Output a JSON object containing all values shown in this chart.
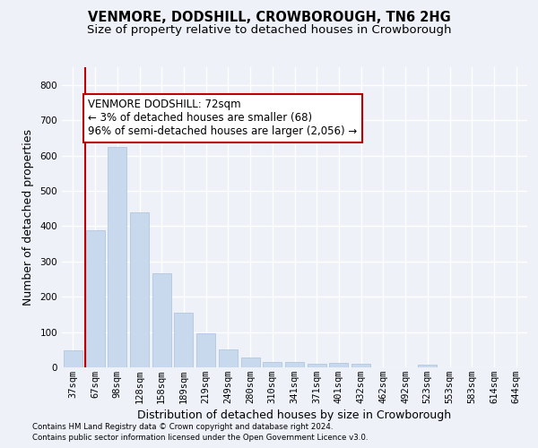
{
  "title": "VENMORE, DODSHILL, CROWBOROUGH, TN6 2HG",
  "subtitle": "Size of property relative to detached houses in Crowborough",
  "xlabel": "Distribution of detached houses by size in Crowborough",
  "ylabel": "Number of detached properties",
  "footnote1": "Contains HM Land Registry data © Crown copyright and database right 2024.",
  "footnote2": "Contains public sector information licensed under the Open Government Licence v3.0.",
  "categories": [
    "37sqm",
    "67sqm",
    "98sqm",
    "128sqm",
    "158sqm",
    "189sqm",
    "219sqm",
    "249sqm",
    "280sqm",
    "310sqm",
    "341sqm",
    "371sqm",
    "401sqm",
    "432sqm",
    "462sqm",
    "492sqm",
    "523sqm",
    "553sqm",
    "583sqm",
    "614sqm",
    "644sqm"
  ],
  "values": [
    47,
    387,
    625,
    438,
    267,
    155,
    97,
    51,
    28,
    15,
    15,
    10,
    12,
    10,
    0,
    0,
    8,
    0,
    0,
    0,
    0
  ],
  "bar_color": "#c8d9ee",
  "bar_edge_color": "#a8c0dc",
  "vline_color": "#c00000",
  "annotation_text": "VENMORE DODSHILL: 72sqm\n← 3% of detached houses are smaller (68)\n96% of semi-detached houses are larger (2,056) →",
  "annotation_box_color": "white",
  "annotation_box_edge_color": "#c00000",
  "ylim": [
    0,
    850
  ],
  "yticks": [
    0,
    100,
    200,
    300,
    400,
    500,
    600,
    700,
    800
  ],
  "background_color": "#eef2f8",
  "grid_color": "white",
  "title_fontsize": 10.5,
  "subtitle_fontsize": 9.5,
  "axis_label_fontsize": 9,
  "tick_fontsize": 7.5,
  "annotation_fontsize": 8.5
}
